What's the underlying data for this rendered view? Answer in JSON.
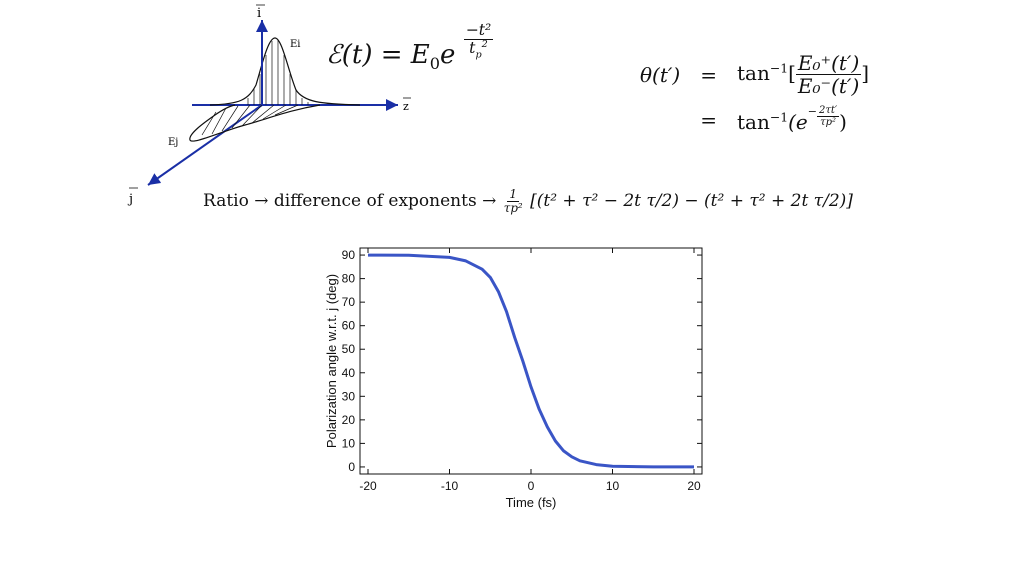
{
  "diagram": {
    "i_label": "i",
    "j_label": "j",
    "z_label": "z",
    "Ei_label": "Ei",
    "Ej_label": "Ej"
  },
  "formula_e": {
    "lhs": "ℰ(t) = E",
    "sub0": "0",
    "base": "e",
    "exp_num": "−t²",
    "exp_den": "t",
    "exp_den_sub": "p",
    "exp_den_sup": "2"
  },
  "theta": {
    "lhs": "θ(t′)",
    "eq1": "=",
    "tan1": "tan",
    "tan1_sup": "−1",
    "frac_num": "E₀⁺(t′)",
    "frac_den": "E₀⁻(t′)",
    "eq2": "=",
    "tan2": "tan",
    "tan2_sup": "−1",
    "exp_expr": "(e",
    "exp_num": "2τt′",
    "exp_den": "τp²",
    "close": ")"
  },
  "ratio": {
    "prefix": "Ratio → difference of exponents →",
    "frac_num": "1",
    "frac_den": "τp²",
    "bracket_expr": "[(t² + τ² − 2t τ/2) − (t² + τ² + 2t τ/2)]"
  },
  "chart_data": {
    "type": "line",
    "title": "",
    "xlabel": "Time (fs)",
    "ylabel": "Polarization angle w.r.t. j (deg)",
    "xlim": [
      -20,
      20
    ],
    "ylim": [
      -3,
      93
    ],
    "xticks": [
      -20,
      -10,
      0,
      10,
      20
    ],
    "yticks": [
      0,
      10,
      20,
      30,
      40,
      50,
      60,
      70,
      80,
      90
    ],
    "color": "#3a55c6",
    "series": [
      {
        "x": [
          -20,
          -15,
          -10,
          -8,
          -6,
          -5,
          -4,
          -3,
          -2,
          -1,
          0,
          1,
          2,
          3,
          4,
          5,
          6,
          8,
          10,
          15,
          20
        ],
        "y": [
          90,
          89.9,
          89.0,
          87.5,
          84.0,
          80.5,
          74.5,
          66.0,
          55.0,
          45.0,
          34.0,
          24.5,
          17.0,
          11.0,
          6.8,
          4.3,
          2.6,
          1.0,
          0.3,
          0.0,
          0.0
        ]
      }
    ]
  }
}
